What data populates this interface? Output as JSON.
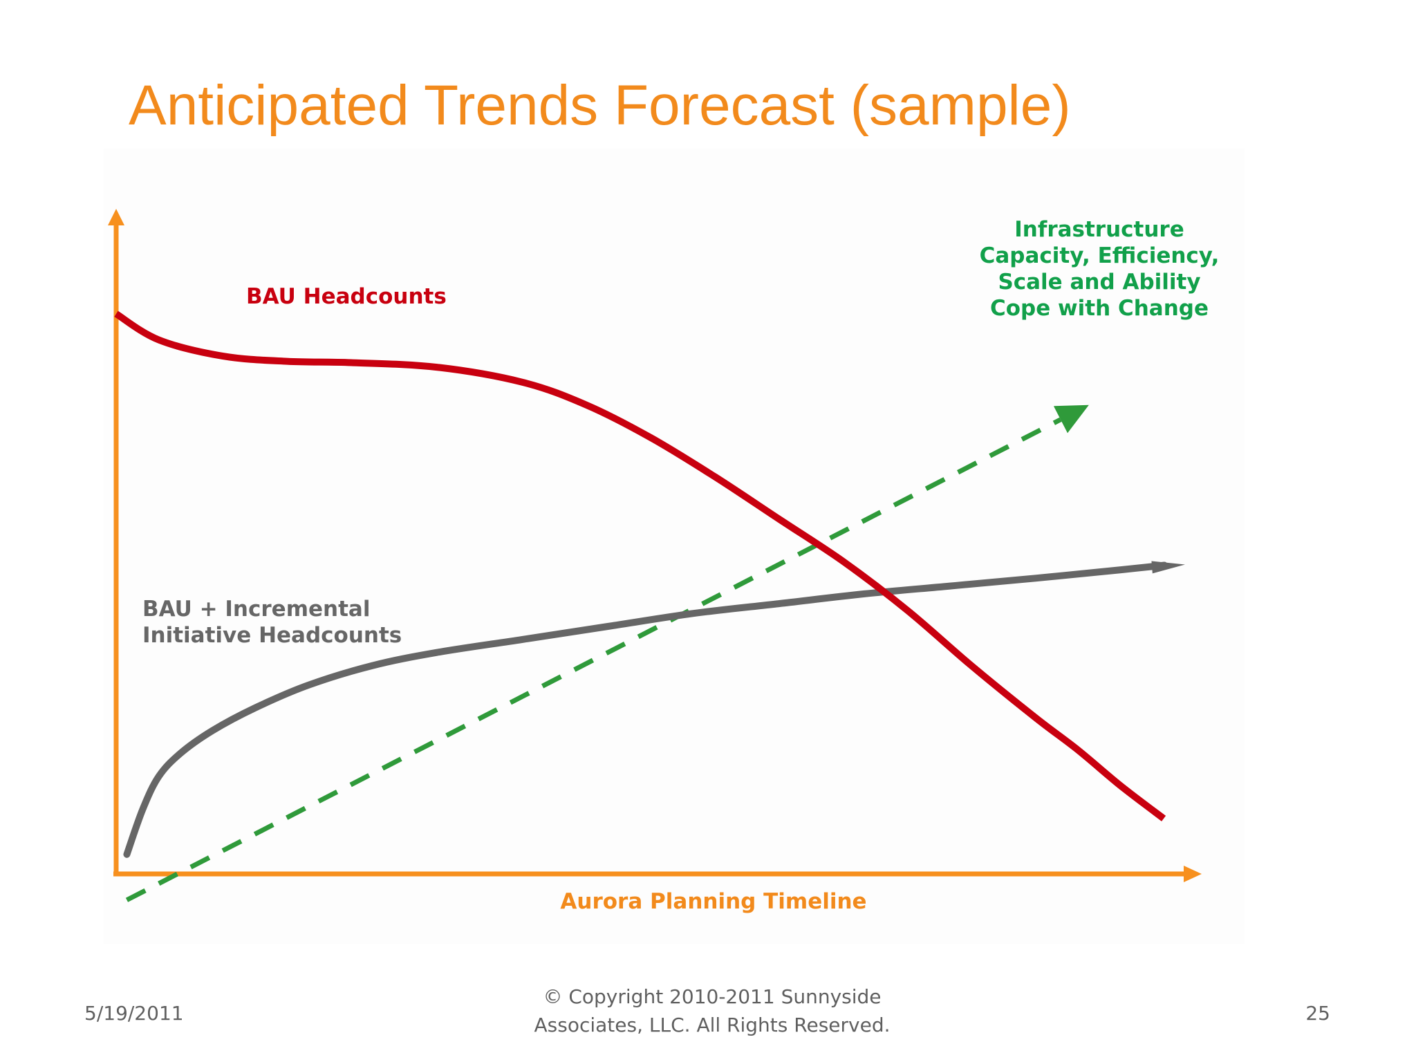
{
  "slide": {
    "title": "Anticipated Trends Forecast (sample)"
  },
  "footer": {
    "date": "5/19/2011",
    "copyright_line1": "© Copyright 2010-2011 Sunnyside",
    "copyright_line2": "Associates, LLC. All Rights Reserved.",
    "page_number": "25"
  },
  "colors": {
    "title": "#f28a1c",
    "axis": "#f7901e",
    "bau": "#c8000f",
    "incremental": "#666666",
    "infrastructure": "#2f9a3a",
    "infrastructure_label": "#11a04a"
  },
  "chart_data": {
    "type": "line",
    "title": "Anticipated Trends Forecast (sample)",
    "xlabel": "Aurora Planning Timeline",
    "ylabel": "",
    "xlim": [
      0,
      100
    ],
    "ylim": [
      0,
      100
    ],
    "grid": false,
    "axis_ticks": "none",
    "series": [
      {
        "name": "BAU Headcounts",
        "style": "solid",
        "label_lines": [
          "BAU Headcounts"
        ],
        "x": [
          0,
          4,
          10,
          16,
          22,
          30,
          38,
          44,
          50,
          56,
          62,
          68,
          74,
          80,
          86,
          90,
          94,
          98
        ],
        "y": [
          86,
          82,
          79.5,
          78.7,
          78.5,
          77.8,
          75.5,
          72,
          67,
          61,
          54.5,
          48,
          40.5,
          32,
          24,
          19,
          13.5,
          8.5
        ]
      },
      {
        "name": "BAU + Incremental Initiative Headcounts",
        "style": "solid",
        "label_lines": [
          "BAU + Incremental",
          "Initiative Headcounts"
        ],
        "x": [
          1,
          2.5,
          4,
          6,
          9,
          13,
          18,
          24,
          30,
          38,
          46,
          54,
          62,
          70,
          78,
          86,
          94,
          100
        ],
        "y": [
          3,
          10,
          15,
          18.5,
          22,
          25.5,
          29,
          32,
          34,
          36,
          38,
          40,
          41.5,
          43,
          44.2,
          45.4,
          46.7,
          47.5
        ]
      },
      {
        "name": "Infrastructure Capacity, Efficiency, Scale and Ability Cope with Change",
        "style": "dashed",
        "label_lines": [
          "Infrastructure",
          "Capacity, Efficiency,",
          "Scale and Ability",
          "Cope with Change"
        ],
        "x": [
          1,
          91
        ],
        "y": [
          -4,
          72
        ]
      }
    ],
    "annotations": [
      "Aurora Planning Timeline"
    ]
  }
}
